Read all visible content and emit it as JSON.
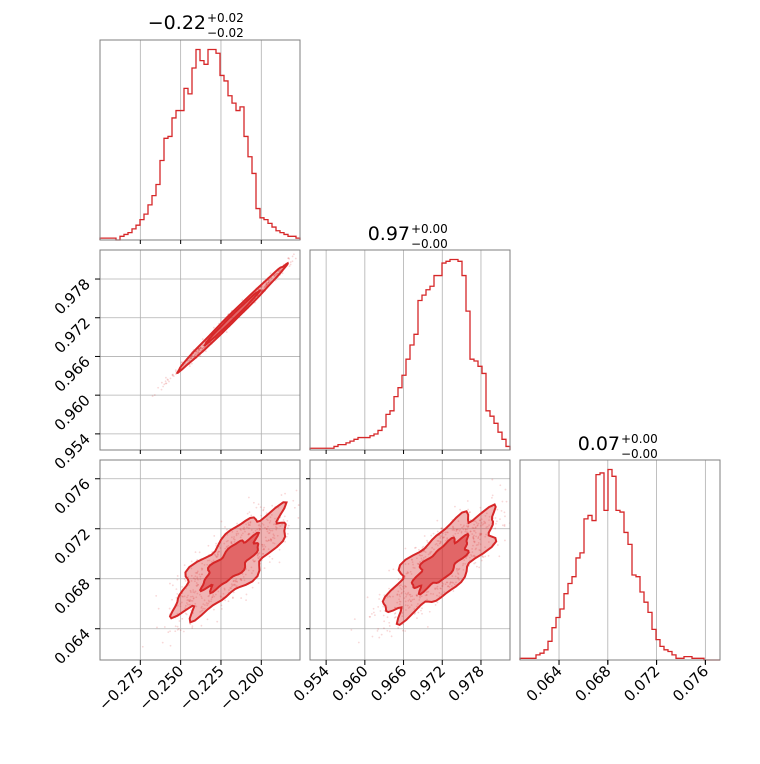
{
  "figure": {
    "type": "corner_plot",
    "accent_color": "#d62728",
    "panel_titles": [
      {
        "main": "−0.22",
        "sup": "+0.02",
        "sub": "−0.02"
      },
      {
        "main": "0.97",
        "sup": "+0.00",
        "sub": "−0.00"
      },
      {
        "main": "0.07",
        "sup": "+0.00",
        "sub": "−0.00"
      }
    ]
  },
  "chart_data": [
    {
      "type": "histogram",
      "title": "−0.22",
      "title_plus": "+0.02",
      "title_minus": "−0.02",
      "xlim": [
        -0.3,
        -0.176
      ],
      "bin_start": -0.3,
      "bin_width": 0.00248,
      "counts": [
        1,
        1,
        1,
        1,
        0,
        2,
        3,
        4,
        6,
        8,
        11,
        14,
        19,
        24,
        30,
        43,
        55,
        56,
        66,
        70,
        70,
        82,
        79,
        93,
        103,
        97,
        95,
        103,
        103,
        101,
        89,
        86,
        78,
        74,
        70,
        72,
        56,
        45,
        36,
        17,
        12,
        11,
        9,
        7,
        5,
        4,
        3,
        2,
        2,
        1
      ],
      "xticks": [
        -0.275,
        -0.25,
        -0.225,
        -0.2
      ],
      "xticklabels": [
        "−0.275",
        "−0.250",
        "−0.225",
        "−0.200"
      ]
    },
    {
      "type": "histogram",
      "title": "0.97",
      "title_plus": "+0.00",
      "title_minus": "−0.00",
      "xlim": [
        0.9515,
        0.9825
      ],
      "bin_start": 0.9515,
      "bin_width": 0.00062,
      "counts": [
        1,
        1,
        1,
        1,
        1,
        1,
        2,
        3,
        3,
        4,
        5,
        6,
        7,
        7,
        7,
        8,
        9,
        11,
        13,
        20,
        22,
        30,
        35,
        42,
        51,
        59,
        65,
        84,
        87,
        90,
        92,
        98,
        98,
        105,
        106,
        107,
        107,
        106,
        98,
        78,
        51,
        50,
        47,
        43,
        22,
        19,
        15,
        10,
        6,
        2
      ],
      "xticks": [
        0.954,
        0.96,
        0.966,
        0.972,
        0.978
      ],
      "xticklabels": [
        "0.954",
        "0.960",
        "0.966",
        "0.972",
        "0.978"
      ]
    },
    {
      "type": "histogram",
      "title": "0.07",
      "title_plus": "+0.00",
      "title_minus": "−0.00",
      "xlim": [
        0.0608,
        0.0772
      ],
      "bin_start": 0.0608,
      "bin_width": 0.000328,
      "counts": [
        1,
        1,
        1,
        1,
        3,
        4,
        6,
        11,
        19,
        25,
        30,
        39,
        45,
        49,
        60,
        63,
        83,
        85,
        82,
        109,
        110,
        88,
        112,
        108,
        88,
        87,
        75,
        68,
        50,
        49,
        40,
        34,
        28,
        18,
        12,
        8,
        6,
        5,
        3,
        1,
        1,
        2,
        2,
        1,
        1,
        1,
        0,
        0,
        0,
        0
      ],
      "xticks": [
        0.064,
        0.068,
        0.072,
        0.076
      ],
      "xticklabels": [
        "0.064",
        "0.068",
        "0.072",
        "0.076"
      ]
    },
    {
      "type": "scatter",
      "x_param": 0,
      "y_param": 1,
      "xlim": [
        -0.3,
        -0.176
      ],
      "ylim": [
        0.9515,
        0.9825
      ],
      "mean": [
        -0.218,
        0.972
      ],
      "std": [
        0.017,
        0.0042
      ],
      "correlation": 0.995,
      "contour_levels": [
        0.39,
        0.86
      ],
      "yticks": [
        0.954,
        0.96,
        0.966,
        0.972,
        0.978
      ],
      "yticklabels": [
        "0.954",
        "0.960",
        "0.966",
        "0.972",
        "0.978"
      ]
    },
    {
      "type": "scatter",
      "x_param": 0,
      "y_param": 2,
      "xlim": [
        -0.3,
        -0.176
      ],
      "ylim": [
        0.0615,
        0.0775
      ],
      "mean": [
        -0.219,
        0.0692
      ],
      "std": [
        0.017,
        0.0021
      ],
      "correlation": 0.8,
      "contour_levels": [
        0.39,
        0.86
      ],
      "xticks": [
        -0.275,
        -0.25,
        -0.225,
        -0.2
      ],
      "xticklabels": [
        "−0.275",
        "−0.250",
        "−0.225",
        "−0.200"
      ],
      "yticks": [
        0.064,
        0.068,
        0.072,
        0.076
      ],
      "yticklabels": [
        "0.064",
        "0.068",
        "0.072",
        "0.076"
      ]
    },
    {
      "type": "scatter",
      "x_param": 1,
      "y_param": 2,
      "xlim": [
        0.9515,
        0.9825
      ],
      "ylim": [
        0.0615,
        0.0775
      ],
      "mean": [
        0.9718,
        0.0692
      ],
      "std": [
        0.0042,
        0.0021
      ],
      "correlation": 0.78,
      "contour_levels": [
        0.39,
        0.86
      ],
      "xticks": [
        0.954,
        0.96,
        0.966,
        0.972,
        0.978
      ],
      "xticklabels": [
        "0.954",
        "0.960",
        "0.966",
        "0.972",
        "0.978"
      ]
    }
  ]
}
